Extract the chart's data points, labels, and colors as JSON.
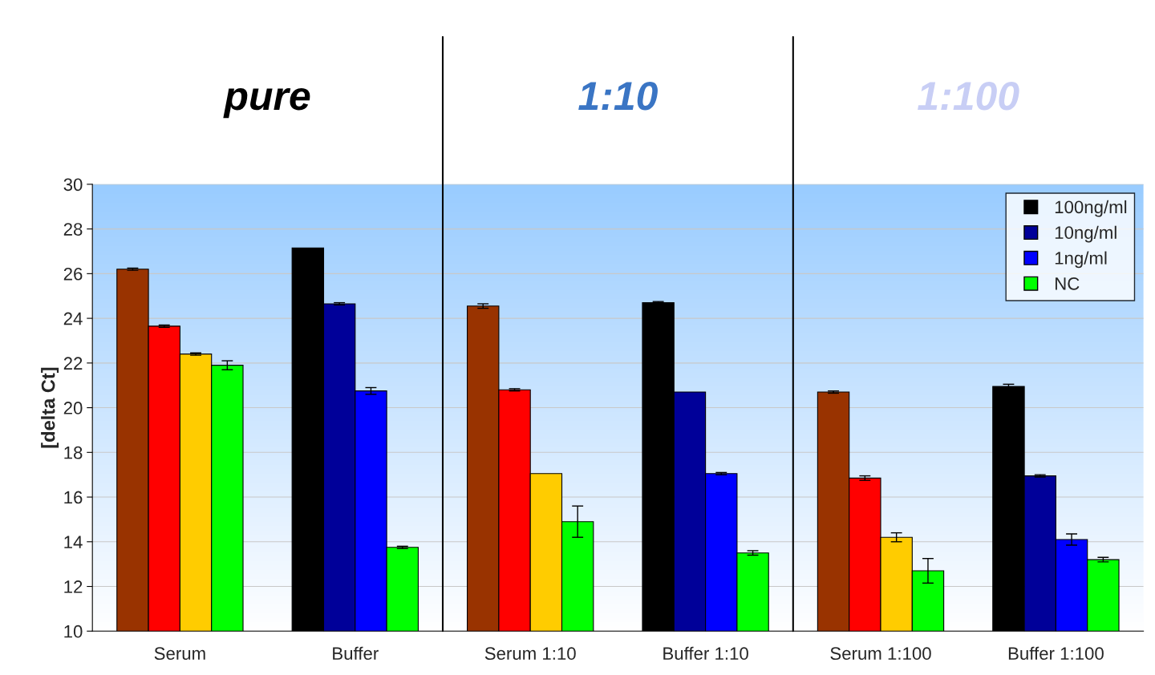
{
  "chart_data": {
    "type": "bar",
    "ylabel": "[delta Ct]",
    "categories": [
      "Serum",
      "Buffer",
      "Serum 1:10",
      "Buffer 1:10",
      "Serum 1:100",
      "Buffer 1:100"
    ],
    "series": [
      {
        "name": "100ng/ml",
        "color": "#000000",
        "colors": [
          "#993300",
          "#000000",
          "#993300",
          "#000000",
          "#993300",
          "#000000"
        ],
        "values": [
          26.2,
          27.15,
          24.55,
          24.7,
          20.7,
          20.95
        ],
        "errors": [
          0.05,
          null,
          0.1,
          0.05,
          0.05,
          0.1
        ]
      },
      {
        "name": "10ng/ml",
        "color": "#000099",
        "colors": [
          "#ff0000",
          "#000099",
          "#ff0000",
          "#000099",
          "#ff0000",
          "#000099"
        ],
        "values": [
          23.65,
          24.65,
          20.8,
          20.7,
          16.85,
          16.95
        ],
        "errors": [
          0.05,
          0.05,
          0.05,
          null,
          0.1,
          0.05
        ]
      },
      {
        "name": "1ng/ml",
        "color": "#0000ff",
        "colors": [
          "#ffcc00",
          "#0000ff",
          "#ffcc00",
          "#0000ff",
          "#ffcc00",
          "#0000ff"
        ],
        "values": [
          22.4,
          20.75,
          17.05,
          17.05,
          14.2,
          14.1
        ],
        "errors": [
          0.05,
          0.15,
          null,
          0.05,
          0.2,
          0.25
        ]
      },
      {
        "name": "NC",
        "color": "#00ff00",
        "colors": [
          "#00ff00",
          "#00ff00",
          "#00ff00",
          "#00ff00",
          "#00ff00",
          "#00ff00"
        ],
        "values": [
          21.9,
          13.75,
          14.9,
          13.5,
          12.7,
          13.2
        ],
        "errors": [
          0.2,
          0.05,
          0.7,
          0.1,
          0.55,
          0.1
        ]
      }
    ],
    "ylim": [
      10,
      30
    ],
    "yticks": [
      10,
      12,
      14,
      16,
      18,
      20,
      22,
      24,
      26,
      28,
      30
    ],
    "grid": "y",
    "legend": "top right",
    "marker": "square",
    "annotations": [
      "pure",
      "1:10",
      "1:100"
    ]
  }
}
